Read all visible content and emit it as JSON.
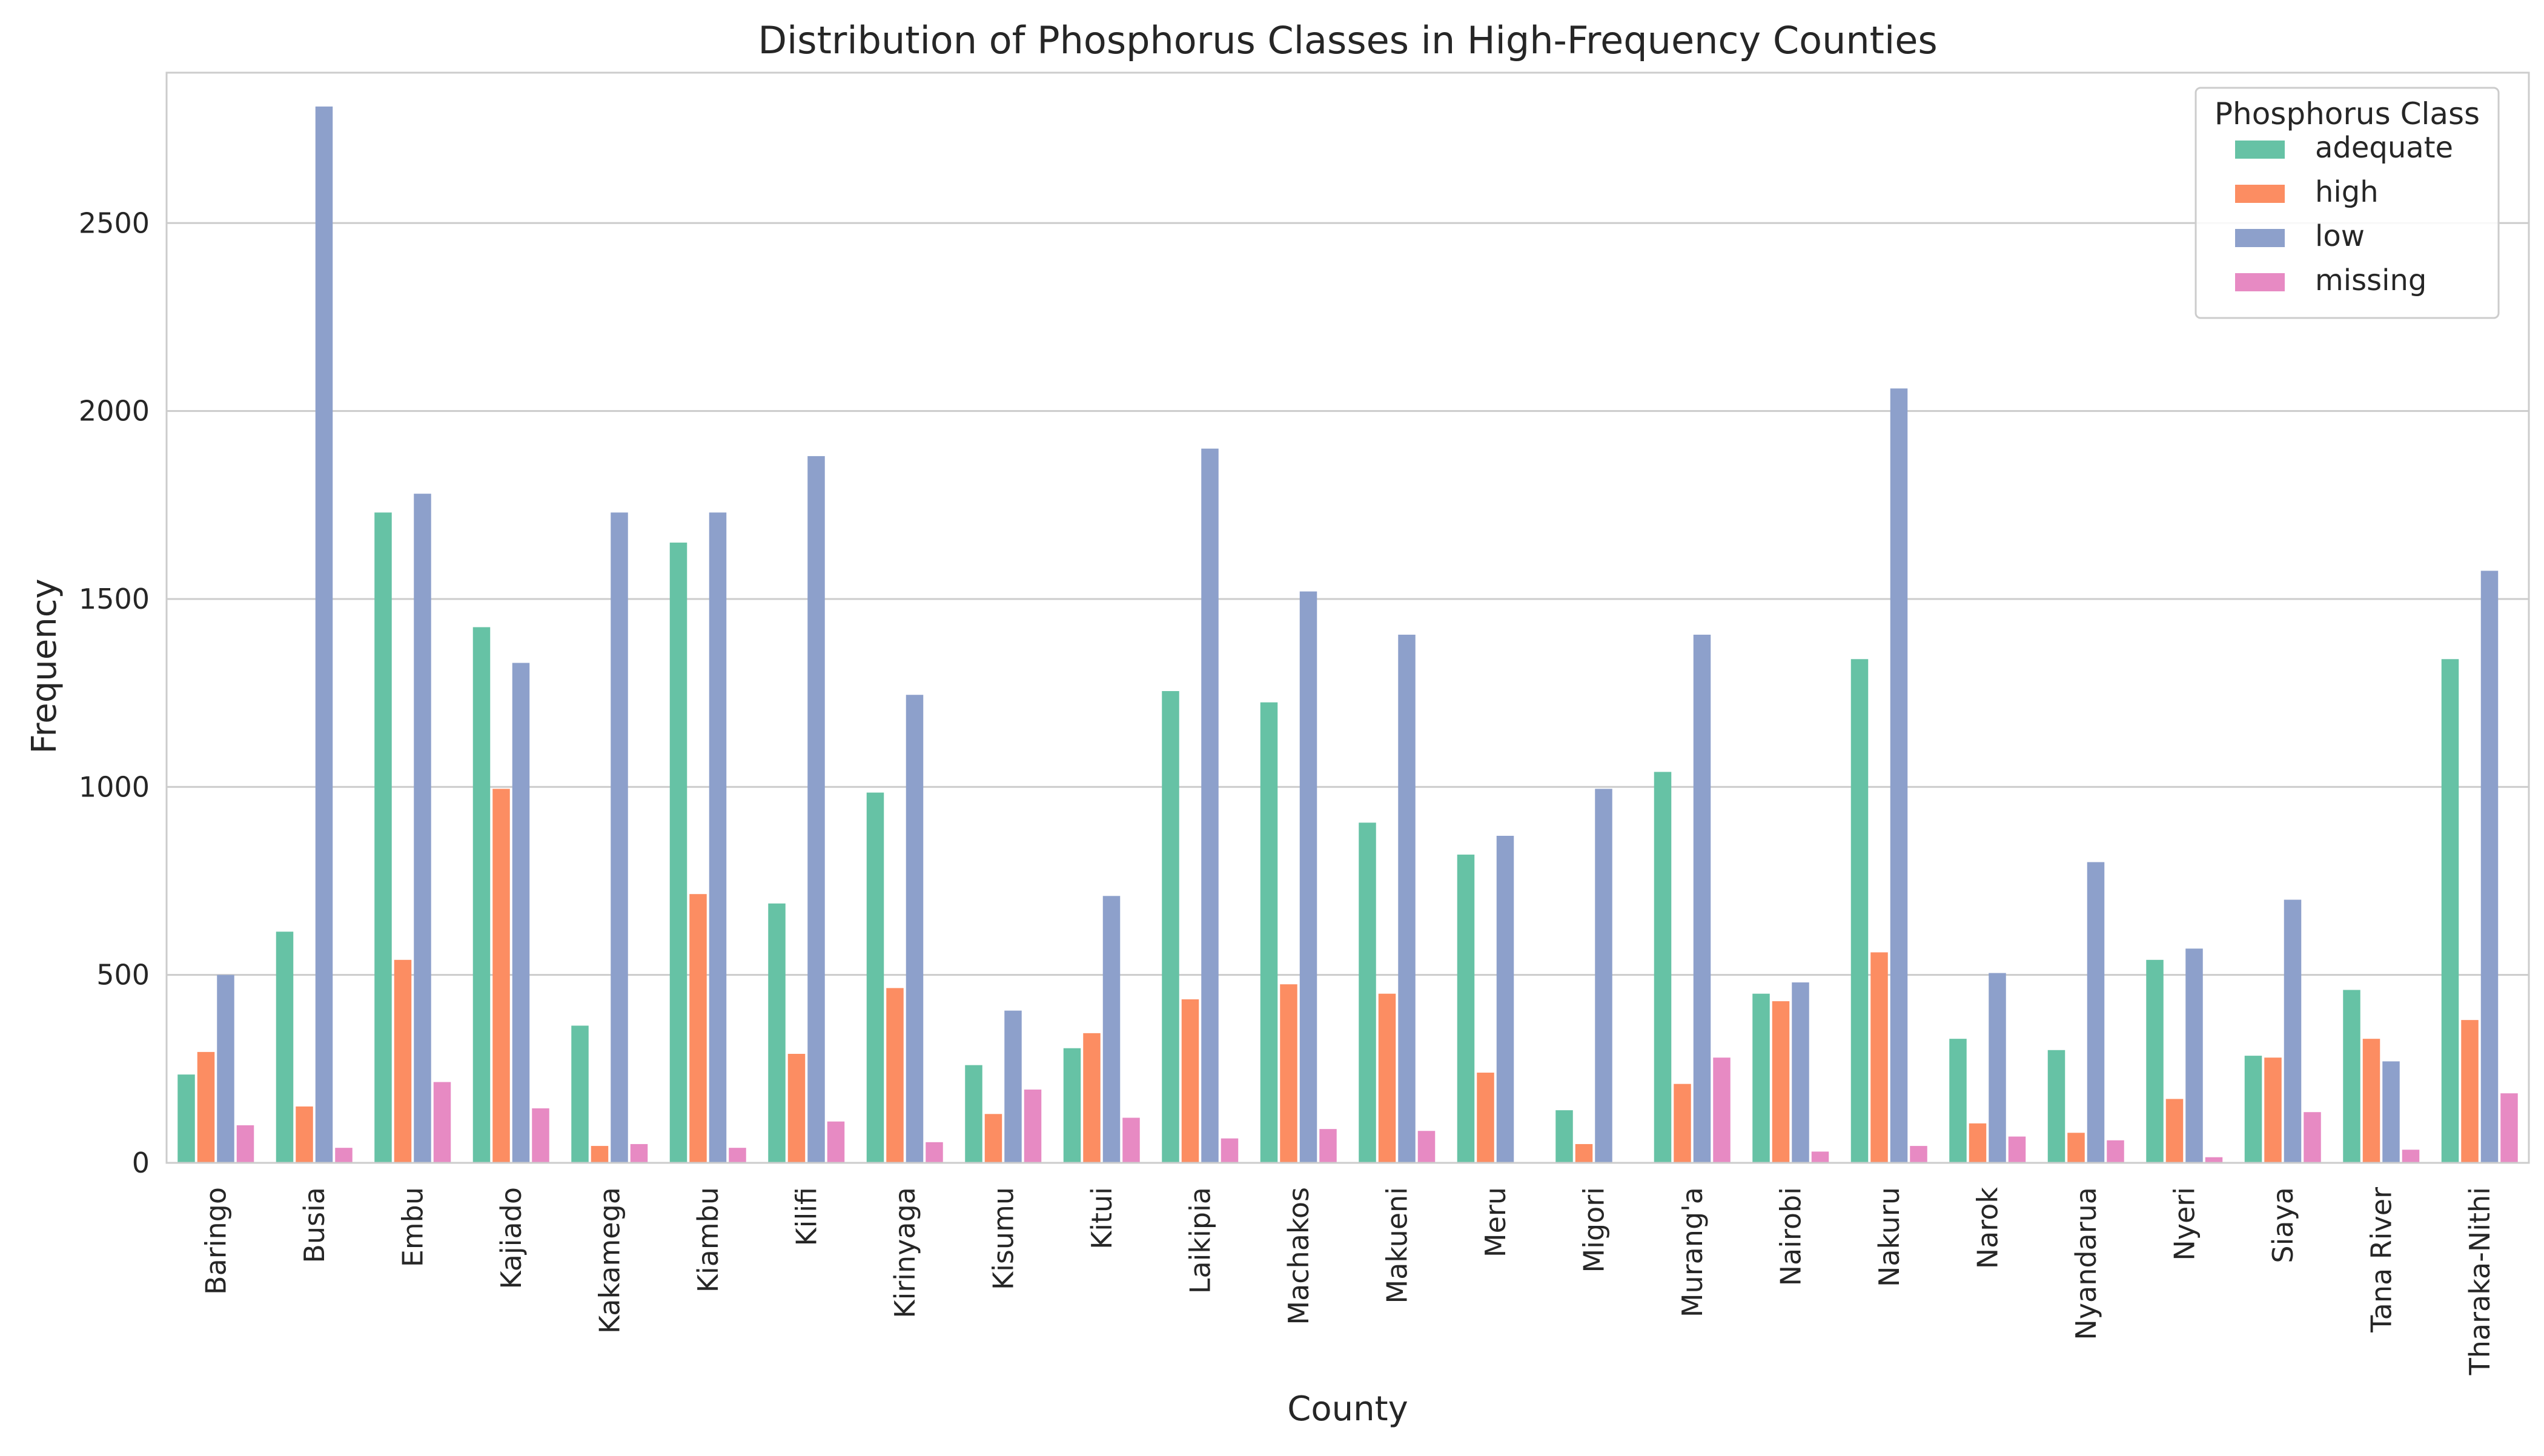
{
  "chart_data": {
    "type": "bar",
    "title": "Distribution of Phosphorus Classes in High-Frequency Counties",
    "xlabel": "County",
    "ylabel": "Frequency",
    "ylim": [
      0,
      2900
    ],
    "yticks": [
      0,
      500,
      1000,
      1500,
      2000,
      2500
    ],
    "grid": "horizontal",
    "legend": {
      "title": "Phosphorus Class",
      "placement": "top-right"
    },
    "categories": [
      "Baringo",
      "Busia",
      "Embu",
      "Kajiado",
      "Kakamega",
      "Kiambu",
      "Kilifi",
      "Kirinyaga",
      "Kisumu",
      "Kitui",
      "Laikipia",
      "Machakos",
      "Makueni",
      "Meru",
      "Migori",
      "Murang'a",
      "Nairobi",
      "Nakuru",
      "Narok",
      "Nyandarua",
      "Nyeri",
      "Siaya",
      "Tana River",
      "Tharaka-Nithi"
    ],
    "series": [
      {
        "name": "adequate",
        "color": "#66c2a5",
        "values": [
          235,
          615,
          1730,
          1425,
          365,
          1650,
          690,
          985,
          260,
          305,
          1255,
          1225,
          905,
          820,
          140,
          1040,
          450,
          1340,
          330,
          300,
          540,
          285,
          460,
          1340
        ]
      },
      {
        "name": "high",
        "color": "#fc8d62",
        "values": [
          295,
          150,
          540,
          995,
          45,
          715,
          290,
          465,
          130,
          345,
          435,
          475,
          450,
          240,
          50,
          210,
          430,
          560,
          105,
          80,
          170,
          280,
          330,
          380
        ]
      },
      {
        "name": "low",
        "color": "#8da0cb",
        "values": [
          500,
          2810,
          1780,
          1330,
          1730,
          1730,
          1880,
          1245,
          405,
          710,
          1900,
          1520,
          1405,
          870,
          995,
          1405,
          480,
          2060,
          505,
          800,
          570,
          700,
          270,
          1575
        ]
      },
      {
        "name": "missing",
        "color": "#e78ac3",
        "values": [
          100,
          40,
          215,
          145,
          50,
          40,
          110,
          55,
          195,
          120,
          65,
          90,
          85,
          0,
          0,
          280,
          30,
          45,
          70,
          60,
          15,
          135,
          35,
          185
        ]
      }
    ]
  }
}
